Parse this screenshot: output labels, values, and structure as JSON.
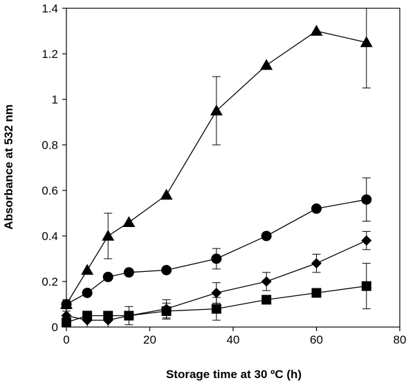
{
  "chart_data": {
    "type": "scatter",
    "xlabel": "Storage time at 30 ºC (h)",
    "ylabel": "Absorbance at 532 nm",
    "xlim": [
      0,
      80
    ],
    "ylim": [
      0,
      1.4
    ],
    "x_ticks": [
      "0",
      "20",
      "40",
      "60",
      "80"
    ],
    "y_ticks": [
      "0",
      "0.2",
      "0.4",
      "0.6",
      "0.8",
      "1",
      "1.2",
      "1.4"
    ],
    "grid": false,
    "legend": "none",
    "series": [
      {
        "marker": "triangle",
        "x": [
          0,
          5,
          10,
          15,
          24,
          36,
          48,
          60,
          72
        ],
        "y": [
          0.1,
          0.25,
          0.4,
          0.46,
          0.58,
          0.95,
          1.15,
          1.3,
          1.25
        ],
        "err": [
          0,
          0,
          0.1,
          0,
          0,
          0.15,
          0,
          0,
          0.2
        ]
      },
      {
        "marker": "circle",
        "x": [
          0,
          5,
          10,
          15,
          24,
          36,
          48,
          60,
          72
        ],
        "y": [
          0.1,
          0.15,
          0.22,
          0.24,
          0.25,
          0.3,
          0.4,
          0.52,
          0.56
        ],
        "err": [
          0.02,
          0,
          0,
          0,
          0,
          0.045,
          0,
          0,
          0.095
        ]
      },
      {
        "marker": "diamond",
        "x": [
          0,
          5,
          10,
          15,
          24,
          36,
          48,
          60,
          72
        ],
        "y": [
          0.05,
          0.03,
          0.03,
          0.05,
          0.08,
          0.15,
          0.2,
          0.28,
          0.38
        ],
        "err": [
          0.02,
          0.04,
          0.035,
          0.04,
          0.04,
          0.045,
          0.04,
          0.04,
          0.04
        ]
      },
      {
        "marker": "square",
        "x": [
          0,
          5,
          10,
          15,
          24,
          36,
          48,
          60,
          72
        ],
        "y": [
          0.02,
          0.05,
          0.05,
          0.05,
          0.07,
          0.08,
          0.12,
          0.15,
          0.18
        ],
        "err": [
          0,
          0,
          0,
          0,
          0.035,
          0.05,
          0,
          0,
          0.1
        ]
      }
    ]
  }
}
